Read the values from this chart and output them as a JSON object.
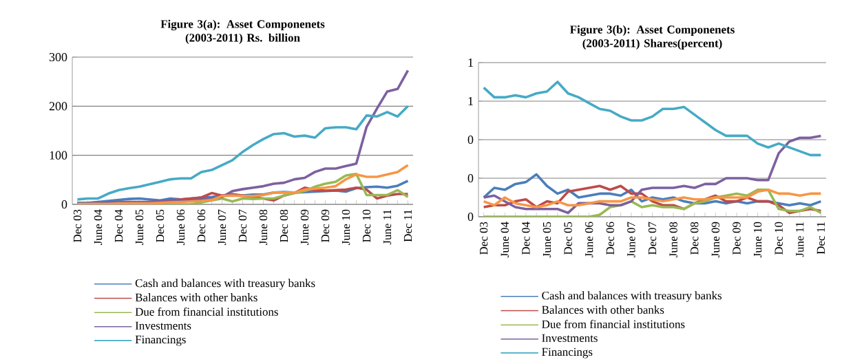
{
  "chart_data": [
    {
      "type": "line",
      "title": "Figure 3(a): Asset Componenets (2003-2011) Rs. billion",
      "categories": [
        "Dec 03",
        null,
        "June 04",
        null,
        "Dec 04",
        null,
        "June 05",
        null,
        "Dec 05",
        null,
        "June 06",
        null,
        "Dec 06",
        null,
        "June 07",
        null,
        "Dec 07",
        null,
        "June 08",
        null,
        "Dec 08",
        null,
        "June 09",
        null,
        "Dec 09",
        null,
        "June 10",
        null,
        "Dec 10",
        null,
        "June 11",
        null,
        "Dec 11"
      ],
      "series": [
        {
          "name": "Cash and balances with treasury banks",
          "color": "#4a7ebb",
          "values": [
            3,
            3,
            5,
            7,
            9,
            11,
            12,
            10,
            8,
            12,
            10,
            12,
            14,
            15,
            18,
            21,
            18,
            20,
            20,
            24,
            25,
            24,
            25,
            26,
            27,
            28,
            26,
            33,
            35,
            36,
            34,
            38,
            48
          ]
        },
        {
          "name": "Balances with other banks",
          "color": "#be4b48",
          "values": [
            1,
            1,
            2,
            3,
            3,
            3,
            4,
            5,
            6,
            8,
            10,
            12,
            14,
            23,
            18,
            19,
            18,
            15,
            12,
            8,
            18,
            23,
            34,
            29,
            28,
            29,
            30,
            34,
            30,
            12,
            18,
            21,
            21
          ]
        },
        {
          "name": "Due from financial institutions",
          "color": "#98b954",
          "values": [
            null,
            null,
            null,
            null,
            null,
            null,
            null,
            0,
            0,
            0,
            0,
            0,
            4,
            8,
            12,
            6,
            12,
            11,
            12,
            12,
            18,
            23,
            27,
            36,
            42,
            46,
            59,
            62,
            19,
            19,
            19,
            29,
            15
          ]
        },
        {
          "name": "Investments",
          "color": "#7d60a0",
          "values": [
            2,
            2,
            3,
            4,
            5,
            5,
            5,
            5,
            6,
            6,
            7,
            8,
            10,
            12,
            15,
            27,
            31,
            34,
            37,
            42,
            44,
            51,
            54,
            66,
            73,
            73,
            78,
            83,
            158,
            195,
            230,
            235,
            273
          ]
        },
        {
          "name": "Financings",
          "color": "#46aac5",
          "values": [
            10,
            12,
            12,
            22,
            29,
            33,
            36,
            41,
            46,
            51,
            53,
            53,
            66,
            70,
            80,
            90,
            107,
            121,
            133,
            143,
            145,
            138,
            140,
            136,
            155,
            157,
            157,
            153,
            181,
            179,
            188,
            179,
            200
          ]
        },
        {
          "color": "#f79646",
          "values": [
            1,
            1,
            1,
            1,
            2,
            2,
            2,
            2,
            3,
            4,
            5,
            6,
            7,
            9,
            17,
            18,
            17,
            17,
            19,
            24,
            24,
            24,
            30,
            32,
            34,
            37,
            51,
            61,
            56,
            56,
            61,
            66,
            80
          ]
        }
      ],
      "ylim": [
        0,
        300
      ],
      "yticks": [
        0,
        100,
        200,
        300
      ],
      "grid": "y",
      "legend": "bottom"
    },
    {
      "type": "line",
      "title": "Figure 3(b): Asset Componenets (2003-2011) Shares(percent)",
      "categories": [
        "Dec 03",
        null,
        "June 04",
        null,
        "Dec 04",
        null,
        "June 05",
        null,
        "Dec 05",
        null,
        "June 06",
        null,
        "Dec 06",
        null,
        "June 07",
        null,
        "Dec 07",
        null,
        "June 08",
        null,
        "Dec 08",
        null,
        "June 09",
        null,
        "Dec 09",
        null,
        "June 10",
        null,
        "Dec 10",
        null,
        "June 11",
        null,
        "Dec 11"
      ],
      "series": [
        {
          "name": "Cash and balances with treasury banks",
          "color": "#4a7ebb",
          "values": [
            0.1,
            0.15,
            0.14,
            0.17,
            0.18,
            0.22,
            0.16,
            0.12,
            0.14,
            0.1,
            0.11,
            0.12,
            0.12,
            0.11,
            0.14,
            0.08,
            0.1,
            0.09,
            0.1,
            0.08,
            0.07,
            0.07,
            0.08,
            0.07,
            0.08,
            0.07,
            0.08,
            0.08,
            0.07,
            0.06,
            0.07,
            0.06,
            0.08
          ]
        },
        {
          "name": "Balances with other banks",
          "color": "#be4b48",
          "values": [
            0.05,
            0.06,
            0.06,
            0.08,
            0.09,
            0.05,
            0.08,
            0.07,
            0.13,
            0.14,
            0.15,
            0.16,
            0.14,
            0.16,
            0.12,
            0.12,
            0.08,
            0.06,
            0.06,
            0.04,
            0.07,
            0.09,
            0.11,
            0.08,
            0.08,
            0.1,
            0.08,
            0.08,
            0.06,
            0.02,
            0.03,
            0.04,
            0.03
          ]
        },
        {
          "name": "Due from financial institutions",
          "color": "#98b954",
          "values": [
            0,
            0,
            0,
            0,
            0,
            0,
            0,
            0,
            0,
            0,
            0,
            0.01,
            0.05,
            0.06,
            0.08,
            0.05,
            0.06,
            0.05,
            0.05,
            0.04,
            0.07,
            0.08,
            0.1,
            0.11,
            0.12,
            0.11,
            0.14,
            0.14,
            0.04,
            0.03,
            0.03,
            0.05,
            0.02
          ]
        },
        {
          "name": "Investments",
          "color": "#7d60a0",
          "values": [
            0.1,
            0.11,
            0.08,
            0.05,
            0.04,
            0.04,
            0.04,
            0.04,
            0.02,
            0.07,
            0.07,
            0.07,
            0.06,
            0.06,
            0.08,
            0.14,
            0.15,
            0.15,
            0.15,
            0.16,
            0.15,
            0.17,
            0.17,
            0.2,
            0.2,
            0.2,
            0.19,
            0.19,
            0.33,
            0.39,
            0.41,
            0.41,
            0.42
          ]
        },
        {
          "name": "Financings",
          "color": "#46aac5",
          "values": [
            0.67,
            0.62,
            0.62,
            0.63,
            0.62,
            0.64,
            0.65,
            0.7,
            0.64,
            0.62,
            0.59,
            0.56,
            0.55,
            0.52,
            0.5,
            0.5,
            0.52,
            0.56,
            0.56,
            0.57,
            0.53,
            0.49,
            0.45,
            0.42,
            0.42,
            0.42,
            0.38,
            0.36,
            0.38,
            0.36,
            0.34,
            0.32,
            0.32
          ]
        },
        {
          "color": "#f79646",
          "values": [
            0.08,
            0.06,
            0.1,
            0.07,
            0.06,
            0.05,
            0.06,
            0.08,
            0.06,
            0.06,
            0.07,
            0.08,
            0.08,
            0.08,
            0.1,
            0.1,
            0.09,
            0.08,
            0.09,
            0.1,
            0.09,
            0.09,
            0.1,
            0.1,
            0.1,
            0.1,
            0.13,
            0.14,
            0.12,
            0.12,
            0.11,
            0.12,
            0.12
          ]
        }
      ],
      "ylim": [
        0,
        0.8
      ],
      "yticks": [
        {
          "value": 0,
          "label": "0"
        },
        {
          "value": 0.2,
          "label": "0"
        },
        {
          "value": 0.4,
          "label": "0"
        },
        {
          "value": 0.6,
          "label": "1"
        },
        {
          "value": 0.8,
          "label": "1"
        }
      ],
      "grid": "y",
      "legend": "bottom"
    }
  ]
}
